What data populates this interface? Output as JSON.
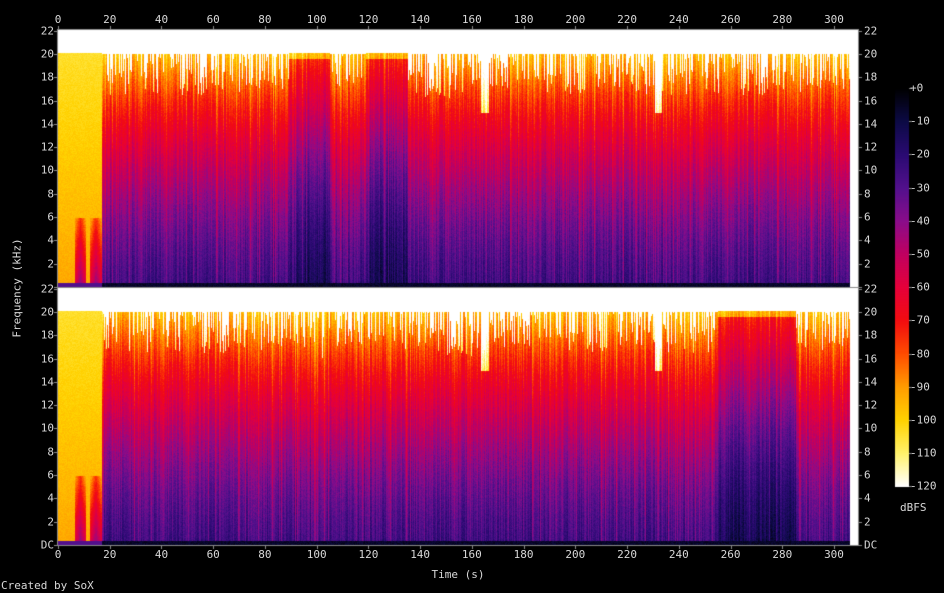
{
  "credit": "Created by SoX",
  "chart_data": {
    "type": "heatmap",
    "title": "",
    "xlabel": "Time (s)",
    "ylabel": "Frequency (kHz)",
    "colorbar_label": "dBFS",
    "channels": 2,
    "xlim": [
      0,
      309
    ],
    "ylim": [
      0,
      22.05
    ],
    "zlim": [
      -120,
      0
    ],
    "x_ticks": [
      "0",
      "20",
      "40",
      "60",
      "80",
      "100",
      "120",
      "140",
      "160",
      "180",
      "200",
      "220",
      "240",
      "260",
      "280",
      "300"
    ],
    "y_ticks": [
      "DC",
      "2",
      "4",
      "6",
      "8",
      "10",
      "12",
      "14",
      "16",
      "18",
      "20",
      "22"
    ],
    "colorbar_ticks": [
      "+0",
      "-10",
      "-20",
      "-30",
      "-40",
      "-50",
      "-60",
      "-70",
      "-80",
      "-90",
      "-100",
      "-110",
      "-120"
    ],
    "content_cutoff_khz": 20,
    "audio_end_s": 306,
    "intro_end_s": 17,
    "intro_bursts_s": [
      8.5,
      14.5
    ],
    "bright_hf_sections_channel1_s": [
      [
        89,
        105
      ],
      [
        119,
        135
      ]
    ],
    "bright_hf_sections_channel2_s": [
      [
        255,
        285
      ]
    ],
    "hf_dropouts_s": [
      165,
      232
    ],
    "colormap_hex": [
      "#000000",
      "#0c0a45",
      "#2a0a72",
      "#52108c",
      "#8a0c8a",
      "#c00060",
      "#e6003a",
      "#f20c10",
      "#ff4c00",
      "#ff9c00",
      "#ffd200",
      "#fff26a",
      "#ffffff"
    ]
  }
}
